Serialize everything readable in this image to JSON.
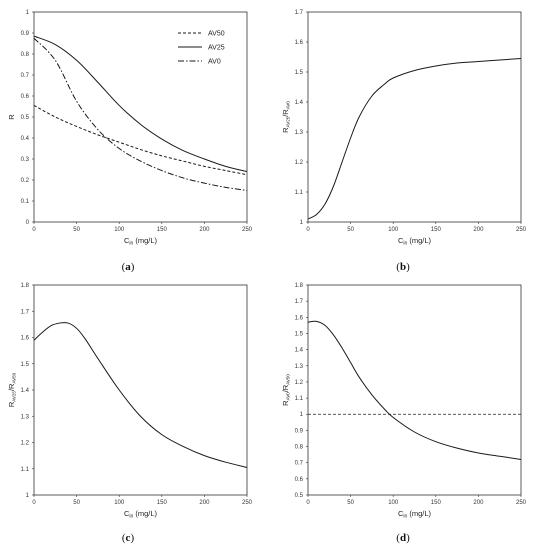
{
  "chart_data": [
    {
      "panel": "a",
      "type": "line",
      "caption": "(a)",
      "xlabel": "C",
      "xlabel_sub": "in",
      "xlabel_unit": "(mg/L)",
      "ylabel": "R",
      "ylabel_sub": "",
      "ylabel_sub2": "",
      "xlim": [
        0,
        250
      ],
      "ylim": [
        0,
        1
      ],
      "xticks": [
        0,
        50,
        100,
        150,
        200,
        250
      ],
      "yticks": [
        0,
        0.1,
        0.2,
        0.3,
        0.4,
        0.5,
        0.6,
        0.7,
        0.8,
        0.9,
        1
      ],
      "ytick_labels": [
        "0",
        "0.1",
        "0.2",
        "0.3",
        "0.4",
        "0.5",
        "0.6",
        "0.7",
        "0.8",
        "0.9",
        "1"
      ],
      "grid": false,
      "legend": "top-right",
      "series": [
        {
          "name": "AV50",
          "dash": "dashed",
          "x": [
            0,
            25,
            50,
            75,
            100,
            125,
            150,
            175,
            200,
            225,
            250
          ],
          "y": [
            0.555,
            0.5,
            0.455,
            0.415,
            0.38,
            0.345,
            0.315,
            0.29,
            0.265,
            0.245,
            0.225
          ]
        },
        {
          "name": "AV25",
          "dash": "solid",
          "x": [
            0,
            25,
            50,
            75,
            100,
            125,
            150,
            175,
            200,
            225,
            250
          ],
          "y": [
            0.885,
            0.845,
            0.77,
            0.665,
            0.555,
            0.465,
            0.395,
            0.34,
            0.3,
            0.265,
            0.24
          ]
        },
        {
          "name": "AV0",
          "dash": "dashdot",
          "x": [
            0,
            25,
            50,
            75,
            100,
            125,
            150,
            175,
            200,
            225,
            250
          ],
          "y": [
            0.875,
            0.77,
            0.575,
            0.44,
            0.35,
            0.29,
            0.245,
            0.21,
            0.185,
            0.165,
            0.15
          ]
        }
      ]
    },
    {
      "panel": "b",
      "type": "line",
      "caption": "(b)",
      "xlabel": "C",
      "xlabel_sub": "in",
      "xlabel_unit": "(mg/L)",
      "ylabel": "R",
      "ylabel_sub": "AV25",
      "ylabel_sub2": "AV0",
      "xlim": [
        0,
        250
      ],
      "ylim": [
        1,
        1.7
      ],
      "xticks": [
        0,
        50,
        100,
        150,
        200,
        250
      ],
      "yticks": [
        1,
        1.1,
        1.2,
        1.3,
        1.4,
        1.5,
        1.6,
        1.7
      ],
      "ytick_labels": [
        "1",
        "1.1",
        "1.2",
        "1.3",
        "1.4",
        "1.5",
        "1.6",
        "1.7"
      ],
      "grid": false,
      "series": [
        {
          "dash": "solid",
          "x": [
            0,
            10,
            20,
            30,
            40,
            50,
            60,
            75,
            90,
            100,
            125,
            150,
            175,
            200,
            225,
            250
          ],
          "y": [
            1.01,
            1.025,
            1.06,
            1.12,
            1.2,
            1.28,
            1.35,
            1.42,
            1.46,
            1.48,
            1.505,
            1.52,
            1.53,
            1.535,
            1.54,
            1.545
          ]
        }
      ]
    },
    {
      "panel": "c",
      "type": "line",
      "caption": "(c)",
      "xlabel": "C",
      "xlabel_sub": "in",
      "xlabel_unit": "(mg/L)",
      "ylabel": "R",
      "ylabel_sub": "AV25",
      "ylabel_sub2": "AV50",
      "xlim": [
        0,
        250
      ],
      "ylim": [
        1,
        1.8
      ],
      "xticks": [
        0,
        50,
        100,
        150,
        200,
        250
      ],
      "yticks": [
        1,
        1.1,
        1.2,
        1.3,
        1.4,
        1.5,
        1.6,
        1.7,
        1.8
      ],
      "ytick_labels": [
        "1",
        "1.1",
        "1.2",
        "1.3",
        "1.4",
        "1.5",
        "1.6",
        "1.7",
        "1.8"
      ],
      "grid": false,
      "series": [
        {
          "dash": "solid",
          "x": [
            0,
            10,
            20,
            30,
            40,
            50,
            60,
            75,
            100,
            125,
            150,
            175,
            200,
            225,
            250
          ],
          "y": [
            1.59,
            1.62,
            1.645,
            1.655,
            1.655,
            1.635,
            1.595,
            1.52,
            1.4,
            1.3,
            1.23,
            1.185,
            1.15,
            1.125,
            1.105
          ]
        }
      ]
    },
    {
      "panel": "d",
      "type": "line",
      "caption": "(d)",
      "xlabel": "C",
      "xlabel_sub": "in",
      "xlabel_unit": "(mg/L)",
      "ylabel": "R",
      "ylabel_sub": "AV0",
      "ylabel_sub2": "AV50",
      "xlim": [
        0,
        250
      ],
      "ylim": [
        0.5,
        1.8
      ],
      "xticks": [
        0,
        50,
        100,
        150,
        200,
        250
      ],
      "yticks": [
        0.5,
        0.6,
        0.7,
        0.8,
        0.9,
        1,
        1.1,
        1.2,
        1.3,
        1.4,
        1.5,
        1.6,
        1.7,
        1.8
      ],
      "ytick_labels": [
        "0.5",
        "0.6",
        "0.7",
        "0.8",
        "0.9",
        "1",
        "1.1",
        "1.2",
        "1.3",
        "1.4",
        "1.5",
        "1.6",
        "1.7",
        "1.8"
      ],
      "grid": false,
      "reference_line": {
        "y": 1,
        "dash": "dashed"
      },
      "series": [
        {
          "dash": "solid",
          "x": [
            0,
            10,
            20,
            30,
            40,
            50,
            60,
            75,
            90,
            100,
            125,
            150,
            175,
            200,
            225,
            250
          ],
          "y": [
            1.57,
            1.575,
            1.55,
            1.49,
            1.41,
            1.32,
            1.23,
            1.12,
            1.03,
            0.98,
            0.89,
            0.83,
            0.79,
            0.76,
            0.74,
            0.72
          ]
        }
      ]
    }
  ]
}
